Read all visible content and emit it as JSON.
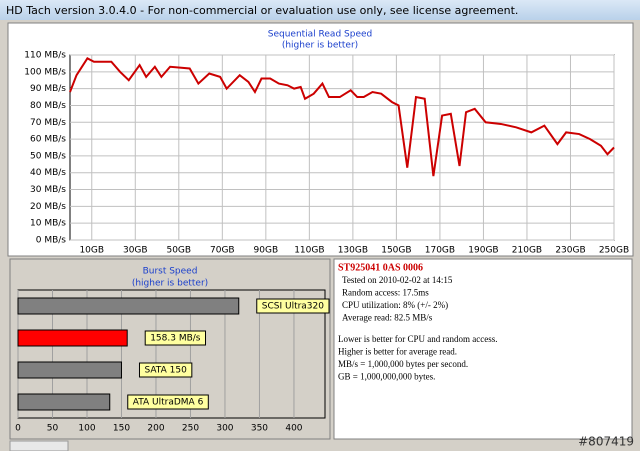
{
  "window": {
    "title": "HD Tach version 3.0.4.0  - For non-commercial or evaluation use only, see license agreement."
  },
  "chart_data": [
    {
      "type": "line",
      "title": "Sequential Read Speed",
      "subtitle": "(higher is better)",
      "x": [
        0,
        3,
        8,
        11,
        19,
        23,
        27,
        32,
        35,
        39,
        42,
        46,
        55,
        59,
        64,
        69,
        72,
        78,
        82,
        85,
        88,
        92,
        96,
        100,
        103,
        106,
        108,
        112,
        116,
        119,
        124,
        129,
        132,
        135,
        139,
        143,
        148,
        151,
        155,
        159,
        163,
        167,
        171,
        175,
        179,
        182,
        186,
        191,
        198,
        205,
        212,
        218,
        224,
        228,
        234,
        239,
        244,
        247,
        250
      ],
      "series": [
        {
          "color": "#cc0000",
          "values": [
            88,
            98,
            108,
            106,
            106,
            100,
            95,
            104,
            97,
            103,
            97,
            103,
            102,
            93,
            99,
            97,
            90,
            98,
            94,
            88,
            96,
            96,
            93,
            92,
            90,
            91,
            84,
            87,
            93,
            85,
            85,
            89,
            85,
            85,
            88,
            87,
            82,
            80,
            43,
            85,
            84,
            38,
            74,
            75,
            44,
            76,
            78,
            70,
            69,
            67,
            64,
            68,
            57,
            64,
            63,
            60,
            56,
            51,
            55
          ]
        }
      ],
      "xlim": [
        0,
        250
      ],
      "xticks": [
        {
          "value": 10,
          "label": "10GB"
        },
        {
          "value": 30,
          "label": "30GB"
        },
        {
          "value": 50,
          "label": "50GB"
        },
        {
          "value": 70,
          "label": "70GB"
        },
        {
          "value": 90,
          "label": "90GB"
        },
        {
          "value": 110,
          "label": "110GB"
        },
        {
          "value": 130,
          "label": "130GB"
        },
        {
          "value": 150,
          "label": "150GB"
        },
        {
          "value": 170,
          "label": "170GB"
        },
        {
          "value": 190,
          "label": "190GB"
        },
        {
          "value": 210,
          "label": "210GB"
        },
        {
          "value": 230,
          "label": "230GB"
        },
        {
          "value": 250,
          "label": "250GB"
        }
      ],
      "ylim": [
        0,
        110
      ],
      "yticks": [
        {
          "value": 0,
          "label": "0 MB/s"
        },
        {
          "value": 10,
          "label": "10 MB/s"
        },
        {
          "value": 20,
          "label": "20 MB/s"
        },
        {
          "value": 30,
          "label": "30 MB/s"
        },
        {
          "value": 40,
          "label": "40 MB/s"
        },
        {
          "value": 50,
          "label": "50 MB/s"
        },
        {
          "value": 60,
          "label": "60 MB/s"
        },
        {
          "value": 70,
          "label": "70 MB/s"
        },
        {
          "value": 80,
          "label": "80 MB/s"
        },
        {
          "value": 90,
          "label": "90 MB/s"
        },
        {
          "value": 100,
          "label": "100 MB/s"
        },
        {
          "value": 110,
          "label": "110 MB/s"
        }
      ],
      "grid": true
    },
    {
      "type": "hbar",
      "title": "Burst Speed",
      "subtitle": "(higher is better)",
      "categories": [
        "SCSI Ultra320",
        null,
        "SATA 150",
        "ATA UltraDMA 6"
      ],
      "values": [
        320,
        158.3,
        150,
        133
      ],
      "value_labels": [
        null,
        "158.3 MB/s",
        null,
        null
      ],
      "colors": [
        "#808080",
        "#ff0000",
        "#808080",
        "#808080"
      ],
      "xlim": [
        0,
        445
      ],
      "xticks": [
        0,
        50,
        100,
        150,
        200,
        250,
        300,
        350,
        400
      ],
      "grid": true
    }
  ],
  "info": {
    "drive": "ST925041 0AS 0006",
    "lines": [
      "Tested on 2010-02-02 at 14:15",
      "Random access: 17.5ms",
      "CPU utilization: 8% (+/- 2%)",
      "Average read: 82.5 MB/s"
    ],
    "notes": [
      "Lower is better for CPU and random access.",
      "Higher is better for average read.",
      "MB/s = 1,000,000 bytes per second.",
      "GB = 1,000,000,000 bytes."
    ]
  },
  "watermark": "#807419"
}
